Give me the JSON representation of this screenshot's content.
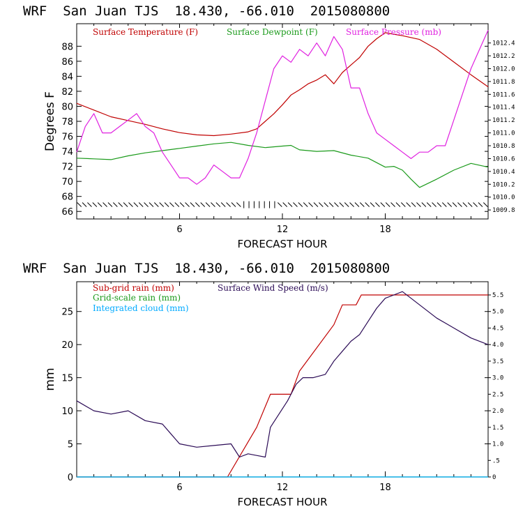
{
  "chart_data": [
    {
      "type": "line",
      "title": "WRF  San Juan TJS  18.430, -66.010  2015080800",
      "xlabel": "FORECAST HOUR",
      "ylabel": "Degrees F",
      "xlim": [
        0,
        24
      ],
      "xticks": [
        6,
        12,
        18
      ],
      "ylim": [
        65,
        91
      ],
      "yticks": [
        66,
        68,
        70,
        72,
        74,
        76,
        78,
        80,
        82,
        84,
        86,
        88
      ],
      "y2lim": [
        1009.66,
        1012.7
      ],
      "y2ticks": [
        1009.8,
        1010.0,
        1010.2,
        1010.4,
        1010.6,
        1010.8,
        1011.0,
        1011.2,
        1011.4,
        1011.6,
        1011.8,
        1012.0,
        1012.2,
        1012.4
      ],
      "y2tick_labels": [
        "1009.8",
        "1010.0",
        "1010.2",
        "1010.4",
        "1010.6",
        "1010.8",
        "1011.0",
        "1011.2",
        "1011.4",
        "1011.6",
        "1011.8",
        "1012.0",
        "1012.2",
        "1012.4"
      ],
      "wind_barbs": {
        "y": 66.9,
        "count": 80,
        "calm_from": 9.5,
        "calm_to": 11.8
      },
      "series": [
        {
          "name": "Surface Temperature (F)",
          "color": "#c00000",
          "axis": "left",
          "x": [
            0,
            1,
            2,
            3,
            4,
            5,
            6,
            7,
            8,
            9,
            10,
            10.5,
            11,
            11.5,
            12,
            12.5,
            13,
            13.5,
            14,
            14.5,
            15,
            15.5,
            16,
            16.5,
            17,
            17.5,
            18,
            18.5,
            19,
            20,
            21,
            22,
            23,
            24
          ],
          "values": [
            80.4,
            79.5,
            78.6,
            78.1,
            77.6,
            77.0,
            76.5,
            76.2,
            76.1,
            76.3,
            76.6,
            77.0,
            78.0,
            79.0,
            80.2,
            81.5,
            82.2,
            83.0,
            83.5,
            84.2,
            83.0,
            84.5,
            85.5,
            86.5,
            88.0,
            89.0,
            89.8,
            89.6,
            89.4,
            88.9,
            87.6,
            85.9,
            84.2,
            82.6
          ]
        },
        {
          "name": "Surface Dewpoint (F)",
          "color": "#1a9a1a",
          "axis": "left",
          "x": [
            0,
            1,
            2,
            3,
            4,
            5,
            6,
            7,
            8,
            9,
            10,
            11,
            12,
            12.5,
            13,
            14,
            15,
            16,
            17,
            18,
            18.5,
            19,
            19.5,
            20,
            21,
            22,
            23,
            24
          ],
          "values": [
            73.1,
            73.0,
            72.9,
            73.4,
            73.8,
            74.1,
            74.4,
            74.7,
            75.0,
            75.2,
            74.8,
            74.5,
            74.7,
            74.8,
            74.2,
            74.0,
            74.1,
            73.5,
            73.1,
            71.9,
            72.0,
            71.5,
            70.3,
            69.2,
            70.3,
            71.5,
            72.4,
            71.9
          ]
        },
        {
          "name": "Surface Pressure (mb)",
          "color": "#e020e0",
          "axis": "right",
          "x": [
            0,
            0.5,
            1,
            1.5,
            2,
            2.5,
            3,
            3.5,
            4,
            4.5,
            5,
            5.5,
            6,
            6.5,
            7,
            7.5,
            8,
            8.5,
            9,
            9.5,
            10,
            10.5,
            11,
            11.5,
            12,
            12.5,
            13,
            13.5,
            14,
            14.5,
            15,
            15.5,
            16,
            16.5,
            17,
            17.5,
            18,
            18.5,
            19,
            19.5,
            20,
            20.5,
            21,
            21.5,
            22,
            22.5,
            23,
            23.5,
            24
          ],
          "values": [
            1010.7,
            1011.1,
            1011.3,
            1011.0,
            1011.0,
            1011.1,
            1011.2,
            1011.3,
            1011.1,
            1011.0,
            1010.7,
            1010.5,
            1010.3,
            1010.3,
            1010.2,
            1010.3,
            1010.5,
            1010.4,
            1010.3,
            1010.3,
            1010.6,
            1011.0,
            1011.5,
            1012.0,
            1012.2,
            1012.1,
            1012.3,
            1012.2,
            1012.4,
            1012.2,
            1012.5,
            1012.3,
            1011.7,
            1011.7,
            1011.3,
            1011.0,
            1010.9,
            1010.8,
            1010.7,
            1010.6,
            1010.7,
            1010.7,
            1010.8,
            1010.8,
            1011.2,
            1011.6,
            1012.0,
            1012.3,
            1012.6
          ]
        }
      ],
      "legend": [
        "Surface Temperature (F)",
        "Surface Dewpoint (F)",
        "Surface Pressure (mb)"
      ],
      "legend_position": "top-left",
      "grid": false
    },
    {
      "type": "line",
      "title": "WRF  San Juan TJS  18.430, -66.010  2015080800",
      "xlabel": "FORECAST HOUR",
      "ylabel": "mm",
      "xlim": [
        0,
        24
      ],
      "xticks": [
        6,
        12,
        18
      ],
      "ylim": [
        0,
        29.5
      ],
      "yticks": [
        0,
        5,
        10,
        15,
        20,
        25
      ],
      "y2lim": [
        0,
        5.9
      ],
      "y2ticks": [
        0,
        0.5,
        1.0,
        1.5,
        2.0,
        2.5,
        3.0,
        3.5,
        4.0,
        4.5,
        5.0,
        5.5
      ],
      "y2tick_labels": [
        "0",
        ".5",
        "1.0",
        "1.5",
        "2.0",
        "2.5",
        "3.0",
        "3.5",
        "4.0",
        "4.5",
        "5.0",
        "5.5"
      ],
      "series": [
        {
          "name": "Sub-grid rain (mm)",
          "color": "#c00000",
          "axis": "left",
          "x": [
            0,
            8.8,
            10.5,
            11.3,
            12.5,
            13.0,
            15.0,
            15.5,
            16.3,
            16.6,
            24
          ],
          "values": [
            0,
            0,
            7.5,
            12.5,
            12.5,
            16.0,
            23.0,
            26.0,
            26.0,
            27.5,
            27.5
          ]
        },
        {
          "name": "Grid-scale rain (mm)",
          "color": "#1a9a1a",
          "axis": "left",
          "x": [
            0,
            24
          ],
          "values": [
            0,
            0
          ]
        },
        {
          "name": "Integrated cloud (mm)",
          "color": "#00aaff",
          "axis": "left",
          "x": [
            0,
            24
          ],
          "values": [
            0,
            0
          ]
        },
        {
          "name": "Surface Wind Speed (m/s)",
          "color": "#2a0a55",
          "axis": "right",
          "x": [
            0,
            1,
            2,
            3,
            4,
            5,
            5.5,
            6,
            7,
            8,
            9,
            9.5,
            10,
            10.5,
            11,
            11.3,
            11.8,
            12.3,
            12.8,
            13.2,
            13.8,
            14.5,
            15,
            15.5,
            16,
            16.5,
            17,
            17.5,
            18,
            18.5,
            19,
            19.5,
            20,
            21,
            22,
            23,
            24
          ],
          "values": [
            2.3,
            2.0,
            1.9,
            2.0,
            1.7,
            1.6,
            1.3,
            1.0,
            0.9,
            0.95,
            1.0,
            0.6,
            0.7,
            0.65,
            0.6,
            1.5,
            1.9,
            2.3,
            2.8,
            3.0,
            3.0,
            3.1,
            3.5,
            3.8,
            4.1,
            4.3,
            4.7,
            5.1,
            5.4,
            5.5,
            5.6,
            5.4,
            5.2,
            4.8,
            4.5,
            4.2,
            4.0
          ]
        }
      ],
      "legend": [
        "Sub-grid rain (mm)",
        "Surface Wind Speed (m/s)",
        "Grid-scale rain (mm)",
        "Integrated cloud (mm)"
      ],
      "legend_position": "top-left",
      "grid": false
    }
  ]
}
